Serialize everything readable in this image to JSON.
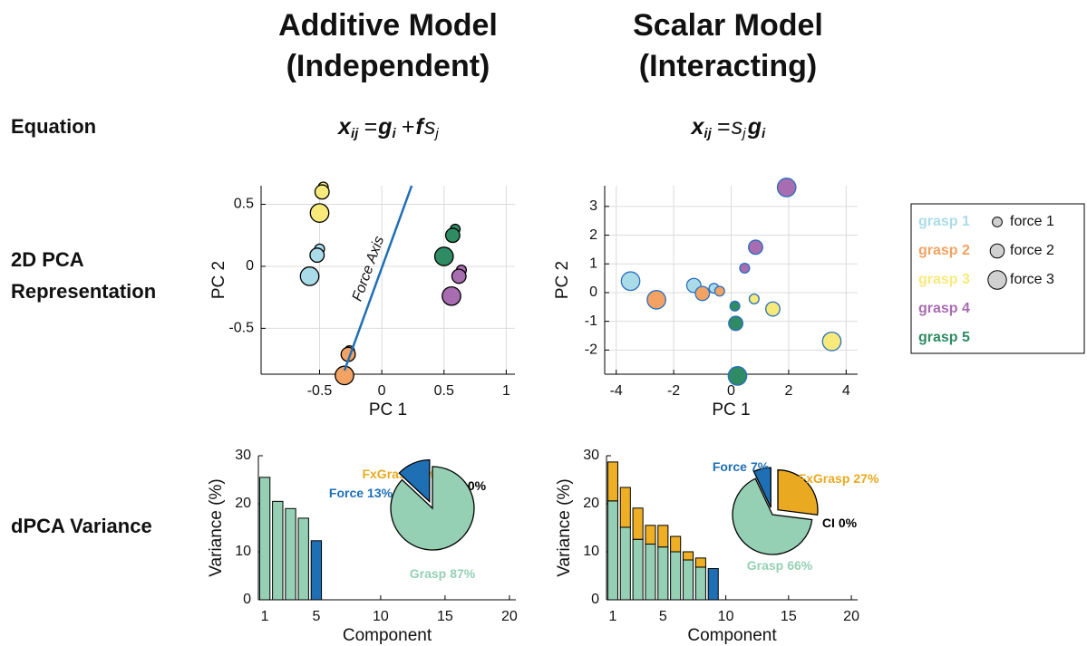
{
  "columns": [
    {
      "title": [
        "Additive Model",
        "(Independent)"
      ],
      "equation": [
        {
          "base": "x",
          "sub": "ij",
          "bold": true
        },
        {
          "base": "="
        },
        {
          "base": "g",
          "sub": "i",
          "bold": true
        },
        {
          "base": "+"
        },
        {
          "base": "f",
          "bold": true
        },
        {
          "base": "s",
          "sub": "j"
        }
      ]
    },
    {
      "title": [
        "Scalar Model",
        "(Interacting)"
      ],
      "equation": [
        {
          "base": "x",
          "sub": "ij",
          "bold": true
        },
        {
          "base": "="
        },
        {
          "base": "s",
          "sub": "j"
        },
        {
          "base": "g",
          "sub": "i",
          "bold": true
        }
      ]
    }
  ],
  "rows": [
    [
      "Equation"
    ],
    [
      "2D PCA",
      "Representation"
    ],
    [
      "dPCA Variance"
    ]
  ],
  "chart_data": [
    {
      "type": "scatter",
      "xlabel": "PC 1",
      "ylabel": "PC 2",
      "xlim": [
        -0.97,
        1.07
      ],
      "ylim": [
        -0.87,
        0.65
      ],
      "xticks": [
        -0.5,
        0,
        0.5,
        1
      ],
      "yticks": [
        -0.5,
        0,
        0.5
      ],
      "grid": true,
      "marker_edge_color": "#000000",
      "series": [
        {
          "color": "#a9dce8",
          "x": [
            -0.5,
            -0.52,
            -0.58
          ],
          "values": [
            0.14,
            0.09,
            -0.08
          ],
          "sizes": [
            1,
            2,
            3
          ]
        },
        {
          "color": "#f2a262",
          "x": [
            -0.26,
            -0.27,
            -0.3
          ],
          "values": [
            -0.68,
            -0.71,
            -0.88
          ],
          "sizes": [
            1,
            2,
            3
          ]
        },
        {
          "color": "#f7ea7a",
          "x": [
            -0.47,
            -0.48,
            -0.5
          ],
          "values": [
            0.64,
            0.6,
            0.43
          ],
          "sizes": [
            1,
            2,
            3
          ]
        },
        {
          "color": "#a86cb0",
          "x": [
            0.64,
            0.62,
            0.56
          ],
          "values": [
            -0.03,
            -0.08,
            -0.24
          ],
          "sizes": [
            1,
            2,
            3
          ]
        },
        {
          "color": "#2e8b63",
          "x": [
            0.59,
            0.57,
            0.5
          ],
          "values": [
            0.3,
            0.25,
            0.08
          ],
          "sizes": [
            1,
            2,
            3
          ]
        }
      ],
      "annotation": {
        "text": "Force Axis",
        "x": [
          -0.3,
          0.24
        ],
        "y": [
          -0.84,
          0.65
        ],
        "color": "#1f6fb5"
      }
    },
    {
      "type": "scatter",
      "xlabel": "PC 1",
      "ylabel": "PC 2",
      "xlim": [
        -4.4,
        4.4
      ],
      "ylim": [
        -2.84,
        3.72
      ],
      "xticks": [
        -4,
        -2,
        0,
        2,
        4
      ],
      "yticks": [
        -2,
        -1,
        0,
        1,
        2,
        3
      ],
      "grid": true,
      "marker_edge_color": "#2a6fbd",
      "legend": "right",
      "size_names": [
        "force 1",
        "force 2",
        "force 3"
      ],
      "size_levels": [
        1,
        2,
        3
      ],
      "series": [
        {
          "name": "grasp 1",
          "color": "#a9dce8",
          "x": [
            -0.6,
            -1.3,
            -3.5
          ],
          "values": [
            0.15,
            0.25,
            0.4
          ],
          "sizes": [
            1,
            2,
            3
          ]
        },
        {
          "name": "grasp 2",
          "color": "#f2a262",
          "x": [
            -0.4,
            -1.0,
            -2.6
          ],
          "values": [
            0.05,
            -0.03,
            -0.25
          ],
          "sizes": [
            1,
            2,
            3
          ]
        },
        {
          "name": "grasp 3",
          "color": "#f7ea7a",
          "x": [
            0.8,
            1.45,
            3.5
          ],
          "values": [
            -0.22,
            -0.57,
            -1.7
          ],
          "sizes": [
            1,
            2,
            3
          ]
        },
        {
          "name": "grasp 4",
          "color": "#a86cb0",
          "x": [
            0.47,
            0.85,
            1.93
          ],
          "values": [
            0.85,
            1.58,
            3.66
          ],
          "sizes": [
            1,
            2,
            3
          ]
        },
        {
          "name": "grasp 5",
          "color": "#2e8b63",
          "x": [
            0.13,
            0.16,
            0.22
          ],
          "values": [
            -0.47,
            -1.07,
            -2.9
          ],
          "sizes": [
            1,
            2,
            3
          ]
        }
      ]
    },
    {
      "type": "bar",
      "stacked": true,
      "xlabel": "Component",
      "ylabel": "Variance (%)",
      "xlim": [
        0.5,
        20.5
      ],
      "ylim": [
        0,
        30
      ],
      "xticks": [
        1,
        5,
        10,
        15,
        20
      ],
      "yticks": [
        0,
        10,
        20,
        30
      ],
      "x": [
        1,
        2,
        3,
        4,
        5
      ],
      "series": [
        {
          "color": "#95d0b4",
          "values": [
            25.5,
            20.5,
            19,
            17,
            null
          ]
        },
        {
          "color": "#1f6fb5",
          "values": [
            null,
            null,
            null,
            null,
            12.3
          ]
        }
      ]
    },
    {
      "type": "pie",
      "categories": [
        "FxGrasp",
        "CI",
        "Grasp",
        "Force"
      ],
      "values": [
        0,
        0,
        87,
        13
      ],
      "value_labels": [
        "0%",
        "0%",
        "87%",
        "13%"
      ],
      "colors": [
        "#e9a920",
        "#000000",
        "#95d0b4",
        "#1f6fb5"
      ],
      "explode": [
        false,
        false,
        false,
        true
      ]
    },
    {
      "type": "bar",
      "stacked": true,
      "xlabel": "Component",
      "ylabel": "Variance (%)",
      "xlim": [
        0.5,
        20.5
      ],
      "ylim": [
        0,
        30
      ],
      "xticks": [
        1,
        5,
        10,
        15,
        20
      ],
      "yticks": [
        0,
        10,
        20,
        30
      ],
      "x": [
        1,
        2,
        3,
        4,
        5,
        6,
        7,
        8,
        9
      ],
      "series": [
        {
          "color": "#95d0b4",
          "values": [
            20.6,
            15.1,
            12.6,
            11.6,
            11,
            10,
            8.3,
            6.8,
            null
          ]
        },
        {
          "color": "#eeaf24",
          "values": [
            8.1,
            8.3,
            6.5,
            3.9,
            4.5,
            3.2,
            1.7,
            1.9,
            null
          ]
        },
        {
          "color": "#1f6fb5",
          "values": [
            null,
            null,
            null,
            null,
            null,
            null,
            null,
            null,
            6.5
          ]
        }
      ]
    },
    {
      "type": "pie",
      "categories": [
        "FxGrasp",
        "CI",
        "Grasp",
        "Force"
      ],
      "values": [
        27,
        0,
        66,
        7
      ],
      "value_labels": [
        "27%",
        "0%",
        "66%",
        "7%"
      ],
      "colors": [
        "#e9a920",
        "#000000",
        "#95d0b4",
        "#1f6fb5"
      ],
      "explode": [
        true,
        false,
        false,
        true
      ]
    }
  ]
}
